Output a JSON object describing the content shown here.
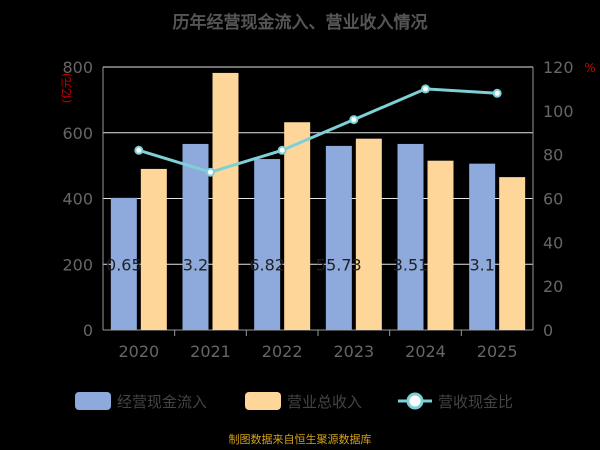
{
  "chart_data": {
    "type": "bar",
    "title": "历年经营现金流入、营业收入情况",
    "left_axis_unit": "(亿元)",
    "right_axis_unit": "%",
    "categories": [
      "2020",
      "2021",
      "2022",
      "2023",
      "2024",
      "2025"
    ],
    "series": [
      {
        "name": "经营现金流入",
        "type": "bar",
        "axis": "left",
        "color": "#8EAADC",
        "values": [
          402,
          566,
          520,
          560,
          566,
          506
        ]
      },
      {
        "name": "营业总收入",
        "type": "bar",
        "axis": "left",
        "color": "#FFD699",
        "values": [
          490,
          782,
          632,
          582,
          515,
          465
        ]
      },
      {
        "name": "营收现金比",
        "type": "line",
        "axis": "right",
        "color": "#7FD0D6",
        "values": [
          82,
          72,
          82,
          96,
          110,
          108
        ]
      }
    ],
    "bar_labels": [
      "0.65",
      "3.2",
      "6.82",
      "55.73",
      "3.51",
      "3.1"
    ],
    "left_ylim": [
      0,
      800
    ],
    "left_ticks": [
      "0",
      "200",
      "400",
      "600",
      "800"
    ],
    "right_ylim": [
      0,
      120
    ],
    "right_ticks": [
      "0",
      "20",
      "40",
      "60",
      "80",
      "100",
      "120"
    ],
    "grid": true,
    "legend_position": "bottom"
  },
  "footer": "制图数据来自恒生聚源数据库"
}
